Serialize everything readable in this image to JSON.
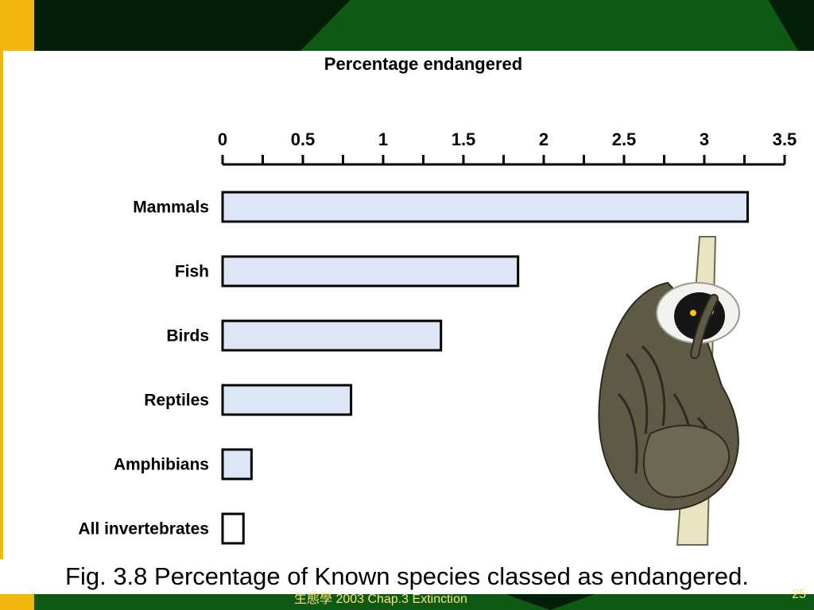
{
  "chart_data": {
    "type": "bar",
    "orientation": "horizontal",
    "title": "Percentage endangered",
    "xlabel": "",
    "ylabel": "",
    "xlim": [
      0,
      3.5
    ],
    "axis_position": "top",
    "x_ticks": [
      "0",
      "0.5",
      "1",
      "1.5",
      "2",
      "2.5",
      "3",
      "3.5"
    ],
    "grid": false,
    "categories": [
      "Mammals",
      "Fish",
      "Birds",
      "Reptiles",
      "Amphibians",
      "All invertebrates"
    ],
    "values": [
      3.27,
      1.84,
      1.36,
      0.8,
      0.18,
      0.13
    ],
    "bar_color": "#dde6f7",
    "bar_stroke": "#000000"
  },
  "caption": "Fig. 3.8 Percentage of Known species classed as endangered.",
  "footer": {
    "course": "生態學 2003 Chap.3 Extinction",
    "page": "25"
  },
  "illustration": {
    "icon": "lemur-on-branch-illustration"
  }
}
